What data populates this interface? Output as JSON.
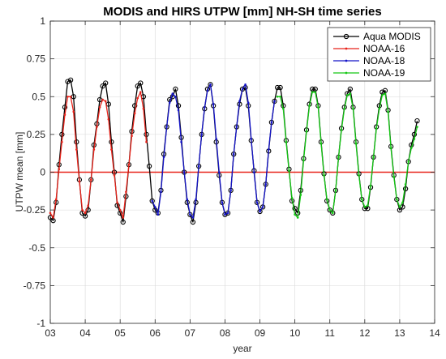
{
  "chart_data": {
    "type": "line",
    "title": "MODIS and HIRS UTPW [mm]  NH-SH time series",
    "xlabel": "year",
    "ylabel": "UTPW mean [mm]",
    "xlim": [
      3,
      14
    ],
    "ylim": [
      -1,
      1
    ],
    "xticks": [
      "03",
      "04",
      "05",
      "06",
      "07",
      "08",
      "09",
      "10",
      "11",
      "12",
      "13",
      "14"
    ],
    "yticks": [
      "-1",
      "-0.75",
      "-0.5",
      "-0.25",
      "0",
      "0.25",
      "0.5",
      "0.75",
      "1"
    ],
    "xtick_values": [
      3,
      4,
      5,
      6,
      7,
      8,
      9,
      10,
      11,
      12,
      13,
      14
    ],
    "ytick_values": [
      -1,
      -0.75,
      -0.5,
      -0.25,
      0,
      0.25,
      0.5,
      0.75,
      1
    ],
    "grid": true,
    "legend_position": "top-right",
    "zero_line": {
      "y": 0,
      "color": "#e8231a"
    },
    "series": [
      {
        "name": "Aqua MODIS",
        "color": "#000000",
        "marker": "circle",
        "x": [
          3.0,
          3.083,
          3.167,
          3.25,
          3.333,
          3.417,
          3.5,
          3.583,
          3.667,
          3.75,
          3.833,
          3.917,
          4.0,
          4.083,
          4.167,
          4.25,
          4.333,
          4.417,
          4.5,
          4.583,
          4.667,
          4.75,
          4.833,
          4.917,
          5.0,
          5.083,
          5.167,
          5.25,
          5.333,
          5.417,
          5.5,
          5.583,
          5.667,
          5.75,
          5.833,
          5.917,
          6.0,
          6.083,
          6.167,
          6.25,
          6.333,
          6.417,
          6.5,
          6.583,
          6.667,
          6.75,
          6.833,
          6.917,
          7.0,
          7.083,
          7.167,
          7.25,
          7.333,
          7.417,
          7.5,
          7.583,
          7.667,
          7.75,
          7.833,
          7.917,
          8.0,
          8.083,
          8.167,
          8.25,
          8.333,
          8.417,
          8.5,
          8.583,
          8.667,
          8.75,
          8.833,
          8.917,
          9.0,
          9.083,
          9.167,
          9.25,
          9.333,
          9.417,
          9.5,
          9.583,
          9.667,
          9.75,
          9.833,
          9.917,
          10.0,
          10.083,
          10.167,
          10.25,
          10.333,
          10.417,
          10.5,
          10.583,
          10.667,
          10.75,
          10.833,
          10.917,
          11.0,
          11.083,
          11.167,
          11.25,
          11.333,
          11.417,
          11.5,
          11.583,
          11.667,
          11.75,
          11.833,
          11.917,
          12.0,
          12.083,
          12.167,
          12.25,
          12.333,
          12.417,
          12.5,
          12.583,
          12.667,
          12.75,
          12.833,
          12.917,
          13.0,
          13.083,
          13.167,
          13.25,
          13.333,
          13.417,
          13.5
        ],
        "y": [
          -0.3,
          -0.32,
          -0.2,
          0.05,
          0.25,
          0.43,
          0.6,
          0.61,
          0.5,
          0.2,
          -0.05,
          -0.27,
          -0.29,
          -0.25,
          -0.05,
          0.18,
          0.32,
          0.48,
          0.57,
          0.59,
          0.45,
          0.2,
          0.0,
          -0.22,
          -0.27,
          -0.33,
          -0.16,
          0.05,
          0.27,
          0.44,
          0.57,
          0.59,
          0.5,
          0.25,
          0.04,
          -0.19,
          -0.25,
          -0.27,
          -0.12,
          0.12,
          0.3,
          0.48,
          0.5,
          0.55,
          0.44,
          0.23,
          0.0,
          -0.2,
          -0.28,
          -0.33,
          -0.2,
          0.04,
          0.25,
          0.42,
          0.55,
          0.58,
          0.44,
          0.2,
          -0.02,
          -0.2,
          -0.28,
          -0.27,
          -0.12,
          0.12,
          0.3,
          0.45,
          0.55,
          0.56,
          0.44,
          0.21,
          0.01,
          -0.2,
          -0.26,
          -0.23,
          -0.08,
          0.14,
          0.33,
          0.47,
          0.56,
          0.56,
          0.44,
          0.21,
          0.02,
          -0.19,
          -0.24,
          -0.27,
          -0.12,
          0.09,
          0.28,
          0.45,
          0.55,
          0.55,
          0.44,
          0.2,
          -0.01,
          -0.19,
          -0.25,
          -0.27,
          -0.12,
          0.1,
          0.29,
          0.43,
          0.52,
          0.55,
          0.43,
          0.2,
          -0.01,
          -0.18,
          -0.24,
          -0.24,
          -0.1,
          0.1,
          0.3,
          0.44,
          0.53,
          0.54,
          0.41,
          0.17,
          -0.02,
          -0.18,
          -0.25,
          -0.23,
          -0.11,
          0.07,
          0.18,
          0.25,
          0.34
        ]
      },
      {
        "name": "NOAA-16",
        "color": "#e8231a",
        "marker": "dot",
        "x": [
          3.0,
          3.083,
          3.167,
          3.25,
          3.333,
          3.417,
          3.5,
          3.583,
          3.667,
          3.75,
          3.833,
          3.917,
          4.0,
          4.083,
          4.167,
          4.25,
          4.333,
          4.417,
          4.5,
          4.583,
          4.667,
          4.75,
          4.833,
          4.917,
          5.0,
          5.083,
          5.167,
          5.25,
          5.333,
          5.417,
          5.5,
          5.583,
          5.667,
          5.75
        ],
        "y": [
          -0.27,
          -0.3,
          -0.18,
          0.02,
          0.2,
          0.38,
          0.5,
          0.5,
          0.4,
          0.15,
          -0.06,
          -0.25,
          -0.27,
          -0.22,
          -0.05,
          0.15,
          0.3,
          0.43,
          0.48,
          0.47,
          0.35,
          0.15,
          -0.02,
          -0.2,
          -0.25,
          -0.3,
          -0.13,
          0.05,
          0.24,
          0.39,
          0.49,
          0.53,
          0.42,
          0.2
        ]
      },
      {
        "name": "NOAA-18",
        "color": "#1414c8",
        "marker": "dot",
        "x": [
          5.917,
          6.0,
          6.083,
          6.167,
          6.25,
          6.333,
          6.417,
          6.5,
          6.583,
          6.667,
          6.75,
          6.833,
          6.917,
          7.0,
          7.083,
          7.167,
          7.25,
          7.333,
          7.417,
          7.5,
          7.583,
          7.667,
          7.75,
          7.833,
          7.917,
          8.0,
          8.083,
          8.167,
          8.25,
          8.333,
          8.417,
          8.5,
          8.583,
          8.667,
          8.75,
          8.833,
          8.917,
          9.0,
          9.083,
          9.167,
          9.25,
          9.333,
          9.417
        ],
        "y": [
          -0.19,
          -0.23,
          -0.28,
          -0.13,
          0.1,
          0.3,
          0.46,
          0.52,
          0.5,
          0.41,
          0.2,
          0.0,
          -0.18,
          -0.28,
          -0.3,
          -0.18,
          0.04,
          0.25,
          0.43,
          0.54,
          0.58,
          0.45,
          0.22,
          0.0,
          -0.2,
          -0.28,
          -0.27,
          -0.12,
          0.12,
          0.3,
          0.47,
          0.55,
          0.58,
          0.46,
          0.22,
          0.0,
          -0.2,
          -0.26,
          -0.23,
          -0.08,
          0.15,
          0.33,
          0.47
        ]
      },
      {
        "name": "NOAA-19",
        "color": "#14c814",
        "marker": "dot",
        "x": [
          9.5,
          9.583,
          9.667,
          9.75,
          9.833,
          9.917,
          10.0,
          10.083,
          10.167,
          10.25,
          10.333,
          10.417,
          10.5,
          10.583,
          10.667,
          10.75,
          10.833,
          10.917,
          11.0,
          11.083,
          11.167,
          11.25,
          11.333,
          11.417,
          11.5,
          11.583,
          11.667,
          11.75,
          11.833,
          11.917,
          12.0,
          12.083,
          12.167,
          12.25,
          12.333,
          12.417,
          12.5,
          12.583,
          12.667,
          12.75,
          12.833,
          12.917,
          13.0,
          13.083,
          13.167,
          13.25,
          13.333,
          13.417,
          13.5
        ],
        "y": [
          0.5,
          0.5,
          0.42,
          0.2,
          0.01,
          -0.17,
          -0.28,
          -0.3,
          -0.15,
          0.08,
          0.27,
          0.44,
          0.53,
          0.53,
          0.43,
          0.19,
          -0.02,
          -0.18,
          -0.25,
          -0.27,
          -0.12,
          0.1,
          0.28,
          0.42,
          0.51,
          0.52,
          0.42,
          0.19,
          -0.02,
          -0.18,
          -0.23,
          -0.22,
          -0.09,
          0.1,
          0.29,
          0.42,
          0.51,
          0.52,
          0.4,
          0.16,
          -0.03,
          -0.18,
          -0.23,
          -0.2,
          -0.08,
          0.07,
          0.16,
          0.22,
          0.3
        ]
      }
    ]
  }
}
